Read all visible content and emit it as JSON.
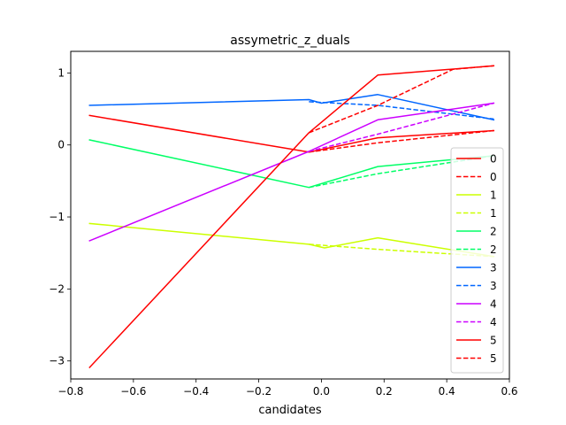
{
  "chart_data": {
    "type": "line",
    "title": "assymetric_z_duals",
    "xlabel": "candidates",
    "ylabel": "",
    "xlim": [
      -0.8,
      0.6
    ],
    "ylim": [
      -3.25,
      1.3
    ],
    "x_ticks": [
      -0.8,
      -0.6,
      -0.4,
      -0.2,
      0.0,
      0.2,
      0.4,
      0.6
    ],
    "x_tick_labels": [
      "−0.8",
      "−0.6",
      "−0.4",
      "−0.2",
      "0.0",
      "0.2",
      "0.4",
      "0.6"
    ],
    "y_ticks": [
      -3,
      -2,
      -1,
      0,
      1
    ],
    "y_tick_labels": [
      "−3",
      "−2",
      "−1",
      "0",
      "1"
    ],
    "grid": false,
    "legend_position": "lower-right",
    "series": [
      {
        "name": "0",
        "color": "#ff0000",
        "dash": "solid",
        "points": [
          [
            -0.74,
            0.41
          ],
          [
            -0.04,
            -0.1
          ],
          [
            0.18,
            0.1
          ],
          [
            0.55,
            0.2
          ]
        ]
      },
      {
        "name": "0",
        "color": "#ff0000",
        "dash": "dashed",
        "points": [
          [
            -0.04,
            -0.1
          ],
          [
            0.18,
            0.03
          ],
          [
            0.55,
            0.2
          ]
        ]
      },
      {
        "name": "1",
        "color": "#ccff00",
        "dash": "solid",
        "points": [
          [
            -0.74,
            -1.09
          ],
          [
            -0.04,
            -1.38
          ],
          [
            0.01,
            -1.43
          ],
          [
            0.18,
            -1.29
          ],
          [
            0.55,
            -1.55
          ]
        ]
      },
      {
        "name": "1",
        "color": "#ccff00",
        "dash": "dashed",
        "points": [
          [
            -0.04,
            -1.38
          ],
          [
            0.18,
            -1.45
          ],
          [
            0.55,
            -1.55
          ]
        ]
      },
      {
        "name": "2",
        "color": "#00ff66",
        "dash": "solid",
        "points": [
          [
            -0.74,
            0.07
          ],
          [
            -0.04,
            -0.59
          ],
          [
            0.18,
            -0.3
          ],
          [
            0.55,
            -0.15
          ]
        ]
      },
      {
        "name": "2",
        "color": "#00ff66",
        "dash": "dashed",
        "points": [
          [
            -0.04,
            -0.59
          ],
          [
            0.18,
            -0.4
          ],
          [
            0.55,
            -0.15
          ]
        ]
      },
      {
        "name": "3",
        "color": "#0066ff",
        "dash": "solid",
        "points": [
          [
            -0.74,
            0.55
          ],
          [
            -0.04,
            0.63
          ],
          [
            0.0,
            0.58
          ],
          [
            0.18,
            0.7
          ],
          [
            0.55,
            0.35
          ]
        ]
      },
      {
        "name": "3",
        "color": "#0066ff",
        "dash": "dashed",
        "points": [
          [
            -0.04,
            0.6
          ],
          [
            0.18,
            0.55
          ],
          [
            0.55,
            0.36
          ]
        ]
      },
      {
        "name": "4",
        "color": "#cc00ff",
        "dash": "solid",
        "points": [
          [
            -0.74,
            -1.33
          ],
          [
            -0.04,
            -0.09
          ],
          [
            0.18,
            0.35
          ],
          [
            0.55,
            0.58
          ]
        ]
      },
      {
        "name": "4",
        "color": "#cc00ff",
        "dash": "dashed",
        "points": [
          [
            -0.04,
            -0.09
          ],
          [
            0.18,
            0.15
          ],
          [
            0.55,
            0.58
          ]
        ]
      },
      {
        "name": "5",
        "color": "#ff0000",
        "dash": "solid",
        "points": [
          [
            -0.74,
            -3.09
          ],
          [
            -0.04,
            0.17
          ],
          [
            0.18,
            0.97
          ],
          [
            0.55,
            1.1
          ]
        ]
      },
      {
        "name": "5",
        "color": "#ff0000",
        "dash": "dashed",
        "points": [
          [
            -0.04,
            0.17
          ],
          [
            0.18,
            0.55
          ],
          [
            0.42,
            1.05
          ],
          [
            0.55,
            1.1
          ]
        ]
      }
    ]
  }
}
